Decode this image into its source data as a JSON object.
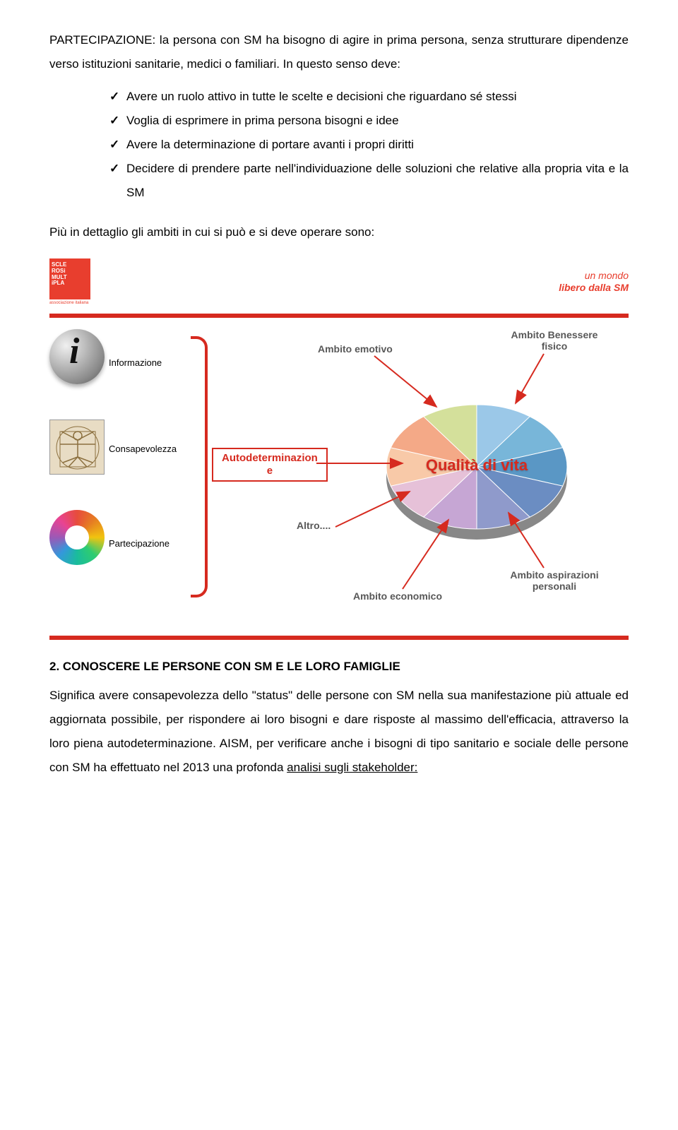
{
  "text": {
    "p1": "PARTECIPAZIONE: la persona con SM ha bisogno di agire in prima persona, senza strutturare dipendenze verso istituzioni sanitarie, medici o familiari. In questo senso deve:",
    "bullets": [
      "Avere un ruolo attivo in tutte le scelte e decisioni che riguardano sé stessi",
      "Voglia di esprimere in prima persona bisogni e idee",
      "Avere la determinazione di portare avanti i propri diritti",
      "Decidere di prendere parte nell'individuazione delle soluzioni che relative alla propria vita e la SM"
    ],
    "p2": "Più in dettaglio gli ambiti in cui si può e si deve operare sono:",
    "section2_title": "2. CONOSCERE LE PERSONE CON SM E LE LORO FAMIGLIE",
    "p3a": "Significa avere consapevolezza dello \"status\" delle persone con SM nella sua manifestazione più attuale ed aggiornata possibile, per  rispondere ai loro bisogni e dare risposte al massimo dell'efficacia, attraverso la loro piena autodeterminazione. AISM, per verificare anche i bisogni di tipo sanitario e sociale delle persone con SM ha effettuato nel 2013 una profonda  ",
    "p3_underline": "analisi sugli stakeholder:"
  },
  "infographic": {
    "logo_lines": [
      "SCLE",
      "ROSi",
      "MULT",
      "iPLA"
    ],
    "logo_sub": "associazione italiana",
    "slogan_l1": "un mondo",
    "slogan_l2": "libero dalla SM",
    "left_items": [
      {
        "label": "Informazione"
      },
      {
        "label": "Consapevolezza"
      },
      {
        "label": "Partecipazione"
      }
    ],
    "center_box_l1": "Autodeterminazion",
    "center_box_l2": "e",
    "pie_title": "Qualità di vita",
    "pie_labels": {
      "emotivo": "Ambito emotivo",
      "benessere": "Ambito Benessere fisico",
      "altro": "Altro....",
      "economico": "Ambito economico",
      "aspirazioni": "Ambito aspirazioni personali"
    },
    "pie_colors": [
      "#9bc8e8",
      "#78b6d9",
      "#5a97c5",
      "#6b8dc2",
      "#8f9acb",
      "#c6a6d4",
      "#e6c1d8",
      "#f8c9a8",
      "#f4a987",
      "#d4e09b"
    ],
    "bar_color": "#d62a1f"
  }
}
